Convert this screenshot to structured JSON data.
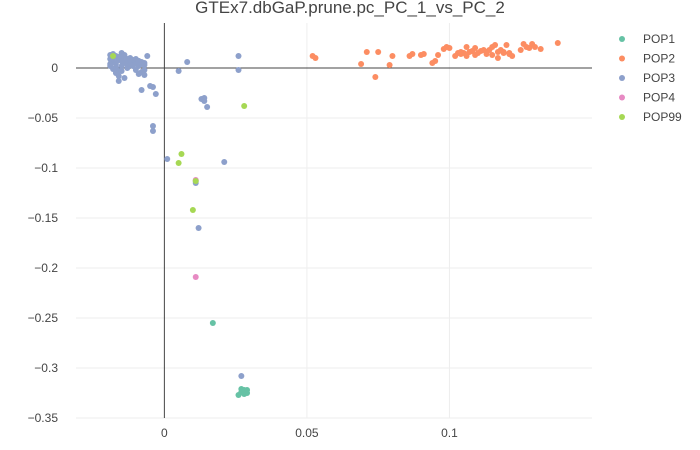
{
  "chart_data": {
    "type": "scatter",
    "title": "GTEx7.dbGaP.prune.pc_PC_1_vs_PC_2",
    "xlabel": "",
    "ylabel": "",
    "xlim": [
      -0.031,
      0.15
    ],
    "ylim": [
      -0.35,
      0.045
    ],
    "x_ticks": [
      0,
      0.05,
      0.1
    ],
    "x_tick_labels": [
      "0",
      "0.05",
      "0.1"
    ],
    "y_ticks": [
      0,
      -0.05,
      -0.1,
      -0.15,
      -0.2,
      -0.25,
      -0.3,
      -0.35
    ],
    "y_tick_labels": [
      "0",
      "−0.05",
      "−0.1",
      "−0.15",
      "−0.2",
      "−0.25",
      "−0.3",
      "−0.35"
    ],
    "grid": true,
    "legend_position": "top-right",
    "series": [
      {
        "name": "POP1",
        "color": "#66c2a5",
        "x": [
          0.017,
          0.026,
          0.027,
          0.028,
          0.029,
          0.028,
          0.027,
          0.029
        ],
        "y": [
          -0.255,
          -0.327,
          -0.324,
          -0.322,
          -0.322,
          -0.326,
          -0.321,
          -0.325
        ]
      },
      {
        "name": "POP2",
        "color": "#fc8d62",
        "x": [
          0.052,
          0.053,
          0.069,
          0.071,
          0.074,
          0.075,
          0.079,
          0.08,
          0.086,
          0.087,
          0.09,
          0.091,
          0.094,
          0.095,
          0.096,
          0.098,
          0.099,
          0.1,
          0.102,
          0.103,
          0.104,
          0.105,
          0.106,
          0.107,
          0.108,
          0.109,
          0.11,
          0.111,
          0.112,
          0.113,
          0.114,
          0.115,
          0.116,
          0.117,
          0.117,
          0.118,
          0.119,
          0.12,
          0.121,
          0.122,
          0.125,
          0.126,
          0.127,
          0.128,
          0.129,
          0.13,
          0.132,
          0.138,
          0.106,
          0.109,
          0.113,
          0.115,
          0.119,
          0.121,
          0.104
        ],
        "y": [
          0.012,
          0.01,
          0.004,
          0.016,
          -0.009,
          0.016,
          0.003,
          0.012,
          0.012,
          0.014,
          0.013,
          0.014,
          0.005,
          0.007,
          0.013,
          0.019,
          0.021,
          0.02,
          0.012,
          0.015,
          0.014,
          0.015,
          0.021,
          0.016,
          0.017,
          0.02,
          0.015,
          0.017,
          0.018,
          0.016,
          0.018,
          0.021,
          0.023,
          0.01,
          0.016,
          0.018,
          0.015,
          0.023,
          0.015,
          0.012,
          0.018,
          0.024,
          0.021,
          0.02,
          0.024,
          0.021,
          0.019,
          0.025,
          0.012,
          0.013,
          0.014,
          0.013,
          0.016,
          0.014,
          0.016
        ]
      },
      {
        "name": "POP3",
        "color": "#8da0cb",
        "x": [
          -0.019,
          -0.019,
          -0.018,
          -0.018,
          -0.017,
          -0.017,
          -0.016,
          -0.016,
          -0.015,
          -0.015,
          -0.015,
          -0.014,
          -0.014,
          -0.013,
          -0.013,
          -0.012,
          -0.012,
          -0.011,
          -0.011,
          -0.01,
          -0.01,
          -0.009,
          -0.009,
          -0.008,
          -0.008,
          -0.007,
          -0.007,
          -0.019,
          -0.018,
          -0.017,
          -0.016,
          -0.015,
          -0.014,
          -0.013,
          -0.012,
          -0.011,
          -0.01,
          -0.009,
          -0.008,
          -0.016,
          -0.017,
          -0.014,
          -0.008,
          -0.007,
          -0.006,
          -0.005,
          -0.004,
          -0.007,
          -0.016,
          -0.015,
          -0.004,
          -0.004,
          -0.003,
          0.001,
          0.005,
          0.008,
          0.013,
          0.014,
          0.014,
          0.015,
          0.021,
          0.026,
          0.026,
          0.011,
          0.012,
          0.027,
          0.011,
          -0.019,
          -0.018,
          -0.015,
          -0.012,
          -0.009
        ],
        "y": [
          0.013,
          0.009,
          0.014,
          0.006,
          0.012,
          0.004,
          0.011,
          0.008,
          0.015,
          0.002,
          0.01,
          0.013,
          0.006,
          0.009,
          0.004,
          0.007,
          0.01,
          0.003,
          0.008,
          0.005,
          0.009,
          0.002,
          0.007,
          0.004,
          0.006,
          0.003,
          0.005,
          0.002,
          0.008,
          0.001,
          -0.003,
          0.011,
          0.005,
          0.0,
          0.009,
          0.002,
          -0.002,
          0.007,
          -0.004,
          -0.008,
          -0.005,
          -0.01,
          -0.022,
          -0.007,
          0.012,
          -0.018,
          -0.019,
          -0.002,
          -0.013,
          -0.003,
          -0.058,
          -0.063,
          -0.026,
          -0.091,
          -0.003,
          0.006,
          -0.031,
          -0.033,
          -0.03,
          -0.039,
          -0.094,
          0.012,
          -0.002,
          -0.113,
          -0.16,
          -0.308,
          -0.115,
          0.004,
          -0.001,
          0.007,
          0.003,
          -0.006
        ]
      },
      {
        "name": "POP4",
        "color": "#e78ac3",
        "x": [
          0.011,
          0.011
        ],
        "y": [
          -0.112,
          -0.209
        ]
      },
      {
        "name": "POP99",
        "color": "#a6d854",
        "x": [
          -0.018,
          0.028,
          0.005,
          0.006,
          0.011,
          0.01
        ],
        "y": [
          0.012,
          -0.038,
          -0.095,
          -0.086,
          -0.113,
          -0.142
        ]
      }
    ]
  }
}
